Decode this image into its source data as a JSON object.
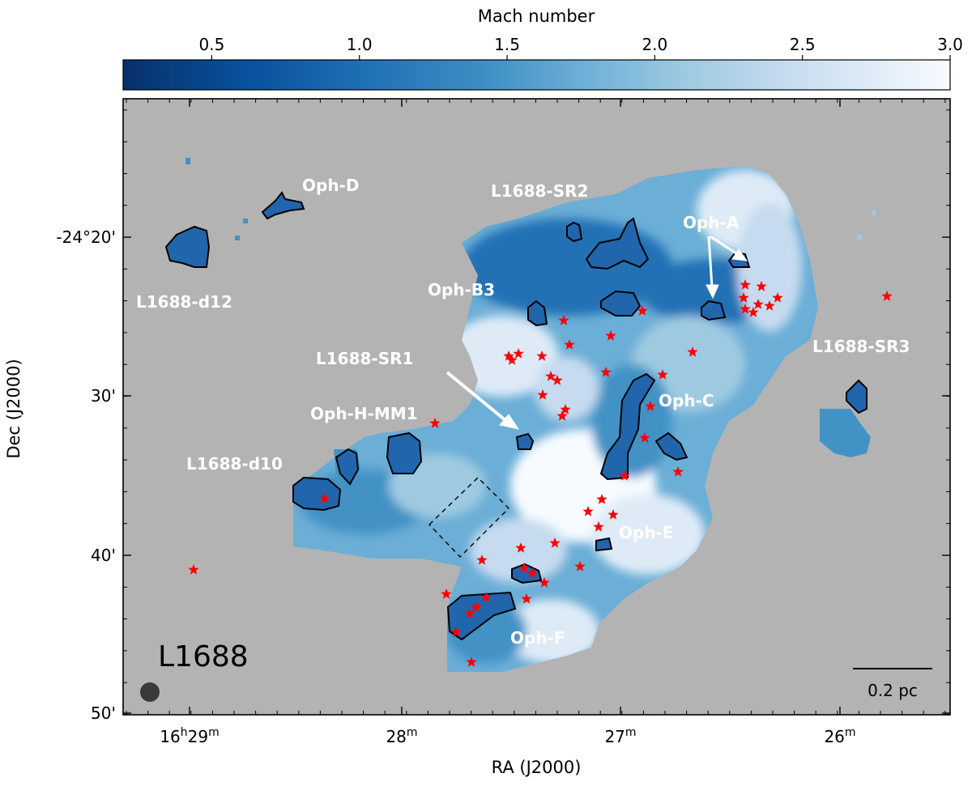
{
  "chart_data": {
    "type": "heatmap",
    "title": "",
    "cloud_label": "L1688",
    "xlabel": "RA (J2000)",
    "ylabel": "Dec (J2000)",
    "x_ticks": [
      {
        "main": "16",
        "sup1": "h",
        "mid": "29",
        "sup2": "m"
      },
      {
        "main": "28",
        "sup2": "m"
      },
      {
        "main": "27",
        "sup2": "m"
      },
      {
        "main": "26",
        "sup2": "m"
      }
    ],
    "y_ticks": [
      "-24°20'",
      "30'",
      "40'",
      "50'"
    ],
    "colorbar": {
      "label": "Mach number",
      "range": [
        0.2,
        3.0
      ],
      "ticks": [
        "0.5",
        "1.0",
        "1.5",
        "2.0",
        "2.5",
        "3.0"
      ],
      "colormap": [
        "#08306b",
        "#08519c",
        "#2171b5",
        "#4292c6",
        "#6baed6",
        "#9ecae1",
        "#c6dbef",
        "#deebf7",
        "#f7fbff"
      ]
    },
    "background_color": "#b3b3b3",
    "source_marker_color": "#ff0000",
    "region_labels": [
      "Oph-D",
      "L1688-SR2",
      "Oph-A",
      "L1688-d12",
      "Oph-B3",
      "L1688-SR1",
      "L1688-SR3",
      "Oph-C",
      "Oph-H-MM1",
      "L1688-d10",
      "Oph-E",
      "Oph-F"
    ],
    "scale_bar": "0.2 pc"
  }
}
